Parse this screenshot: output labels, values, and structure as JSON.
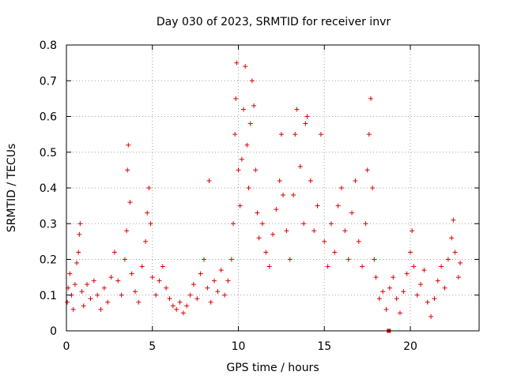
{
  "chart_data": {
    "type": "scatter",
    "title": "Day 030 of 2023, SRMTID for receiver invr",
    "xlabel": "GPS time / hours",
    "ylabel": "SRMTID / TECUs",
    "xlim": [
      0,
      24
    ],
    "ylim": [
      0,
      0.8
    ],
    "x_ticks": [
      0,
      5,
      10,
      15,
      20
    ],
    "x_tick_labels": [
      "0",
      "5",
      "10",
      "15",
      "20"
    ],
    "y_ticks": [
      0,
      0.1,
      0.2,
      0.3,
      0.4,
      0.5,
      0.6,
      0.7,
      0.8
    ],
    "y_tick_labels": [
      "0",
      "0.1",
      "0.2",
      "0.3",
      "0.4",
      "0.5",
      "0.6",
      "0.7",
      "0.8"
    ],
    "grid": true,
    "marker": "+",
    "series": [
      {
        "name": "SRMTID",
        "color": "#e00000",
        "points": [
          [
            0.05,
            0.08
          ],
          [
            0.1,
            0.12
          ],
          [
            0.2,
            0.16
          ],
          [
            0.3,
            0.1
          ],
          [
            0.4,
            0.06
          ],
          [
            0.5,
            0.13
          ],
          [
            0.6,
            0.19
          ],
          [
            0.7,
            0.22
          ],
          [
            0.75,
            0.27
          ],
          [
            0.8,
            0.3
          ],
          [
            0.9,
            0.11
          ],
          [
            1.0,
            0.07
          ],
          [
            1.2,
            0.13
          ],
          [
            1.4,
            0.09
          ],
          [
            1.6,
            0.14
          ],
          [
            1.8,
            0.1
          ],
          [
            2.0,
            0.06
          ],
          [
            2.2,
            0.12
          ],
          [
            2.4,
            0.08
          ],
          [
            2.6,
            0.15
          ],
          [
            2.8,
            0.22
          ],
          [
            3.0,
            0.14
          ],
          [
            3.2,
            0.1
          ],
          [
            3.4,
            0.2
          ],
          [
            3.5,
            0.28
          ],
          [
            3.55,
            0.45
          ],
          [
            3.6,
            0.52
          ],
          [
            3.7,
            0.36
          ],
          [
            3.8,
            0.16
          ],
          [
            4.0,
            0.11
          ],
          [
            4.2,
            0.08
          ],
          [
            4.4,
            0.18
          ],
          [
            4.6,
            0.25
          ],
          [
            4.7,
            0.33
          ],
          [
            4.8,
            0.4
          ],
          [
            4.9,
            0.3
          ],
          [
            5.0,
            0.15
          ],
          [
            5.2,
            0.1
          ],
          [
            5.4,
            0.14
          ],
          [
            5.6,
            0.18
          ],
          [
            5.8,
            0.12
          ],
          [
            6.0,
            0.09
          ],
          [
            6.2,
            0.07
          ],
          [
            6.4,
            0.06
          ],
          [
            6.6,
            0.08
          ],
          [
            6.8,
            0.05
          ],
          [
            7.0,
            0.07
          ],
          [
            7.2,
            0.1
          ],
          [
            7.4,
            0.13
          ],
          [
            7.6,
            0.09
          ],
          [
            7.8,
            0.16
          ],
          [
            8.0,
            0.2
          ],
          [
            8.2,
            0.12
          ],
          [
            8.3,
            0.42
          ],
          [
            8.4,
            0.08
          ],
          [
            8.6,
            0.14
          ],
          [
            8.8,
            0.11
          ],
          [
            9.0,
            0.17
          ],
          [
            9.2,
            0.1
          ],
          [
            9.4,
            0.14
          ],
          [
            9.6,
            0.2
          ],
          [
            9.7,
            0.3
          ],
          [
            9.8,
            0.55
          ],
          [
            9.85,
            0.65
          ],
          [
            9.9,
            0.75
          ],
          [
            10.0,
            0.45
          ],
          [
            10.1,
            0.35
          ],
          [
            10.2,
            0.48
          ],
          [
            10.3,
            0.62
          ],
          [
            10.4,
            0.74
          ],
          [
            10.5,
            0.52
          ],
          [
            10.6,
            0.4
          ],
          [
            10.7,
            0.58
          ],
          [
            10.8,
            0.7
          ],
          [
            10.9,
            0.63
          ],
          [
            11.0,
            0.45
          ],
          [
            11.1,
            0.33
          ],
          [
            11.2,
            0.26
          ],
          [
            11.4,
            0.3
          ],
          [
            11.6,
            0.22
          ],
          [
            11.8,
            0.18
          ],
          [
            12.0,
            0.27
          ],
          [
            12.2,
            0.34
          ],
          [
            12.4,
            0.42
          ],
          [
            12.5,
            0.55
          ],
          [
            12.6,
            0.38
          ],
          [
            12.8,
            0.28
          ],
          [
            13.0,
            0.2
          ],
          [
            13.2,
            0.38
          ],
          [
            13.3,
            0.55
          ],
          [
            13.4,
            0.62
          ],
          [
            13.6,
            0.46
          ],
          [
            13.8,
            0.3
          ],
          [
            13.9,
            0.58
          ],
          [
            14.0,
            0.6
          ],
          [
            14.2,
            0.42
          ],
          [
            14.4,
            0.28
          ],
          [
            14.6,
            0.35
          ],
          [
            14.8,
            0.55
          ],
          [
            15.0,
            0.25
          ],
          [
            15.2,
            0.18
          ],
          [
            15.4,
            0.3
          ],
          [
            15.6,
            0.22
          ],
          [
            15.8,
            0.35
          ],
          [
            16.0,
            0.4
          ],
          [
            16.2,
            0.28
          ],
          [
            16.4,
            0.2
          ],
          [
            16.6,
            0.33
          ],
          [
            16.8,
            0.42
          ],
          [
            17.0,
            0.25
          ],
          [
            17.2,
            0.18
          ],
          [
            17.4,
            0.3
          ],
          [
            17.5,
            0.45
          ],
          [
            17.6,
            0.55
          ],
          [
            17.7,
            0.65
          ],
          [
            17.8,
            0.4
          ],
          [
            17.9,
            0.2
          ],
          [
            18.0,
            0.15
          ],
          [
            18.2,
            0.09
          ],
          [
            18.4,
            0.11
          ],
          [
            18.6,
            0.06
          ],
          [
            18.8,
            0.12
          ],
          [
            19.0,
            0.15
          ],
          [
            19.2,
            0.09
          ],
          [
            19.4,
            0.05
          ],
          [
            19.6,
            0.11
          ],
          [
            19.8,
            0.16
          ],
          [
            20.0,
            0.22
          ],
          [
            20.1,
            0.28
          ],
          [
            20.2,
            0.18
          ],
          [
            20.4,
            0.1
          ],
          [
            20.6,
            0.13
          ],
          [
            20.8,
            0.17
          ],
          [
            21.0,
            0.08
          ],
          [
            21.2,
            0.04
          ],
          [
            21.4,
            0.09
          ],
          [
            21.6,
            0.14
          ],
          [
            21.8,
            0.18
          ],
          [
            22.0,
            0.12
          ],
          [
            22.2,
            0.2
          ],
          [
            22.4,
            0.26
          ],
          [
            22.5,
            0.31
          ],
          [
            22.6,
            0.22
          ],
          [
            22.8,
            0.15
          ],
          [
            22.9,
            0.19
          ]
        ]
      }
    ],
    "marker_at_origin_axis": {
      "x": 18.75,
      "y": 0,
      "shape": "square"
    }
  }
}
